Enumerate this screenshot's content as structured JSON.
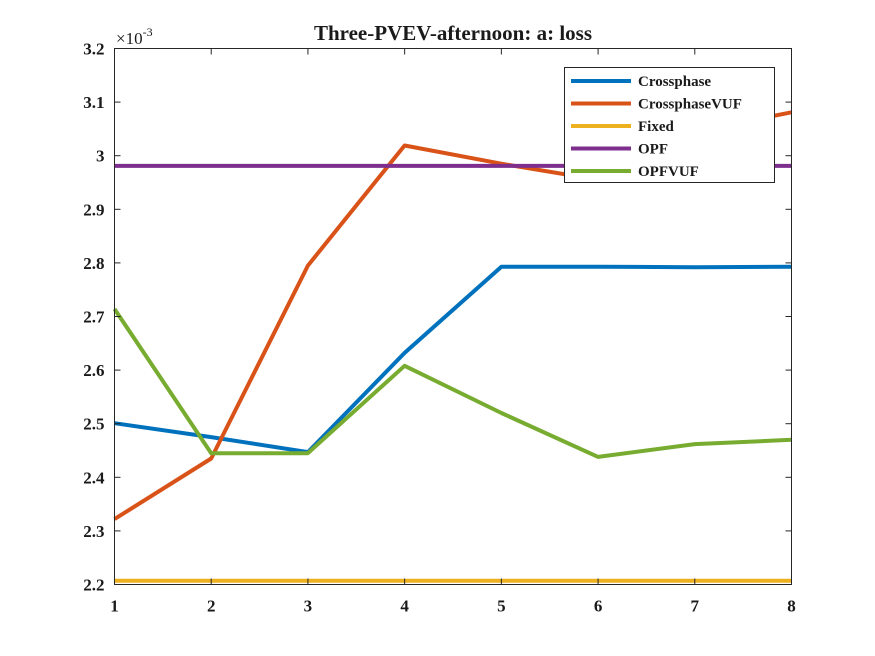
{
  "chart_data": {
    "type": "line",
    "title": "Three-PVEV-afternoon: a: loss",
    "xlabel": "",
    "ylabel": "",
    "y_exponent_label": "×10",
    "y_exponent_power": "-3",
    "x": [
      1,
      2,
      3,
      4,
      5,
      6,
      7,
      8
    ],
    "xlim": [
      1,
      8
    ],
    "ylim": [
      2.2,
      3.2
    ],
    "y_ticks": [
      2.2,
      2.3,
      2.4,
      2.5,
      2.6,
      2.7,
      2.8,
      2.9,
      3.0,
      3.1,
      3.2
    ],
    "y_tick_labels": [
      "2.2",
      "2.3",
      "2.4",
      "2.5",
      "2.6",
      "2.7",
      "2.8",
      "2.9",
      "3",
      "3.1",
      "3.2"
    ],
    "x_ticks": [
      1,
      2,
      3,
      4,
      5,
      6,
      7,
      8
    ],
    "x_tick_labels": [
      "1",
      "2",
      "3",
      "4",
      "5",
      "6",
      "7",
      "8"
    ],
    "grid": false,
    "legend_position": "top-right",
    "series": [
      {
        "name": "Crossphase",
        "color": "#0072BD",
        "values": [
          2.501,
          2.475,
          2.447,
          2.632,
          2.793,
          2.793,
          2.792,
          2.793
        ]
      },
      {
        "name": "CrossphaseVUF",
        "color": "#D95319",
        "values": [
          2.322,
          2.435,
          2.795,
          3.019,
          2.985,
          2.955,
          3.045,
          3.081
        ]
      },
      {
        "name": "Fixed",
        "color": "#EDB120",
        "values": [
          2.207,
          2.207,
          2.207,
          2.207,
          2.207,
          2.207,
          2.207,
          2.207
        ]
      },
      {
        "name": "OPF",
        "color": "#7E2F8E",
        "values": [
          2.981,
          2.981,
          2.981,
          2.981,
          2.981,
          2.981,
          2.981,
          2.981
        ]
      },
      {
        "name": "OPFVUF",
        "color": "#77AC30",
        "values": [
          2.714,
          2.445,
          2.445,
          2.608,
          2.52,
          2.438,
          2.462,
          2.47
        ]
      }
    ]
  }
}
